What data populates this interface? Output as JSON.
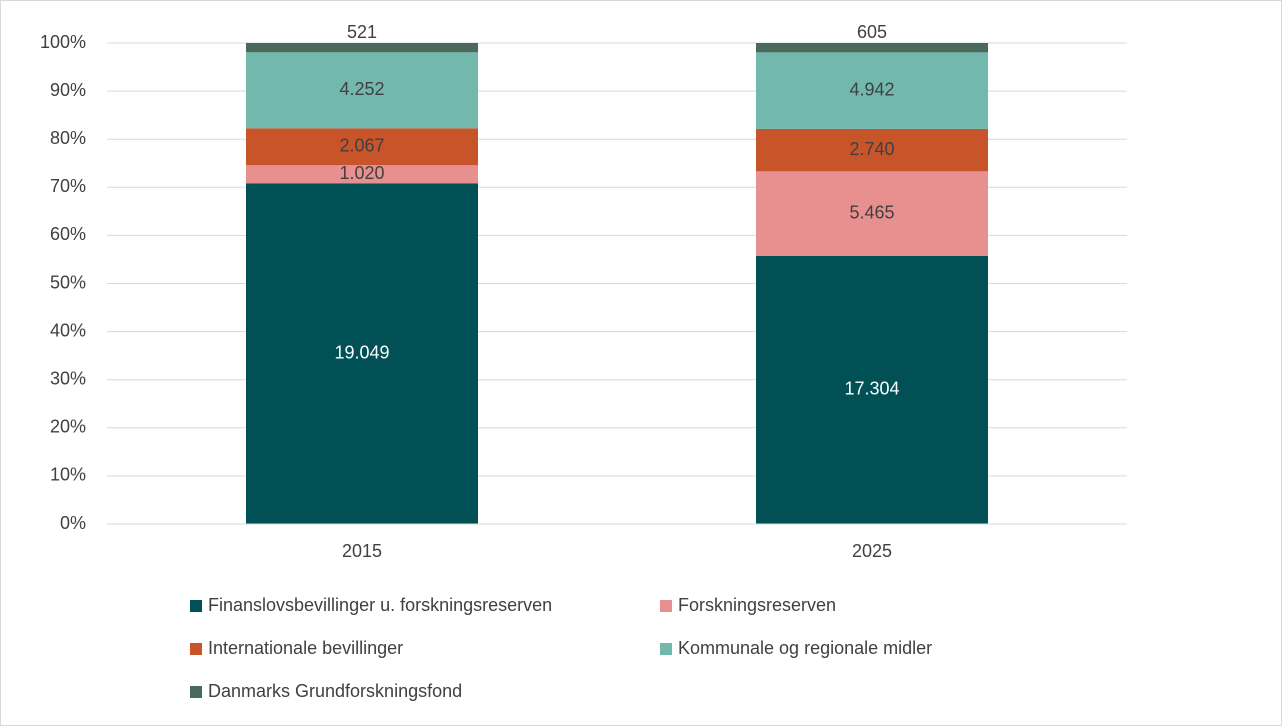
{
  "chart_data": {
    "type": "bar",
    "stacked": "percent",
    "categories": [
      "2015",
      "2025"
    ],
    "series": [
      {
        "name": "Finanslovsbevillinger u. forskningsreserven",
        "color": "#005055",
        "values": [
          19049,
          17304
        ],
        "value_labels": [
          "19.049",
          "17.304"
        ]
      },
      {
        "name": "Forskningsreserven",
        "color": "#e89090",
        "values": [
          1020,
          5465
        ],
        "value_labels": [
          "1.020",
          "5.465"
        ]
      },
      {
        "name": "Internationale bevillinger",
        "color": "#c8542a",
        "values": [
          2067,
          2740
        ],
        "value_labels": [
          "2.067",
          "2.740"
        ]
      },
      {
        "name": "Kommunale og regionale midler",
        "color": "#72b8ad",
        "values": [
          4252,
          4942
        ],
        "value_labels": [
          "4.252",
          "4.942"
        ]
      },
      {
        "name": "Danmarks Grundforskningsfond",
        "color": "#4a6a5c",
        "values": [
          521,
          605
        ],
        "value_labels": [
          "521",
          "605"
        ]
      }
    ],
    "ylim": [
      0,
      100
    ],
    "yticks": [
      {
        "value": 0,
        "label": "0%"
      },
      {
        "value": 10,
        "label": "10%"
      },
      {
        "value": 20,
        "label": "20%"
      },
      {
        "value": 30,
        "label": "30%"
      },
      {
        "value": 40,
        "label": "40%"
      },
      {
        "value": 50,
        "label": "50%"
      },
      {
        "value": 60,
        "label": "60%"
      },
      {
        "value": 70,
        "label": "70%"
      },
      {
        "value": 80,
        "label": "80%"
      },
      {
        "value": 90,
        "label": "90%"
      },
      {
        "value": 100,
        "label": "100%"
      }
    ],
    "grid": true,
    "legend": "bottom"
  }
}
